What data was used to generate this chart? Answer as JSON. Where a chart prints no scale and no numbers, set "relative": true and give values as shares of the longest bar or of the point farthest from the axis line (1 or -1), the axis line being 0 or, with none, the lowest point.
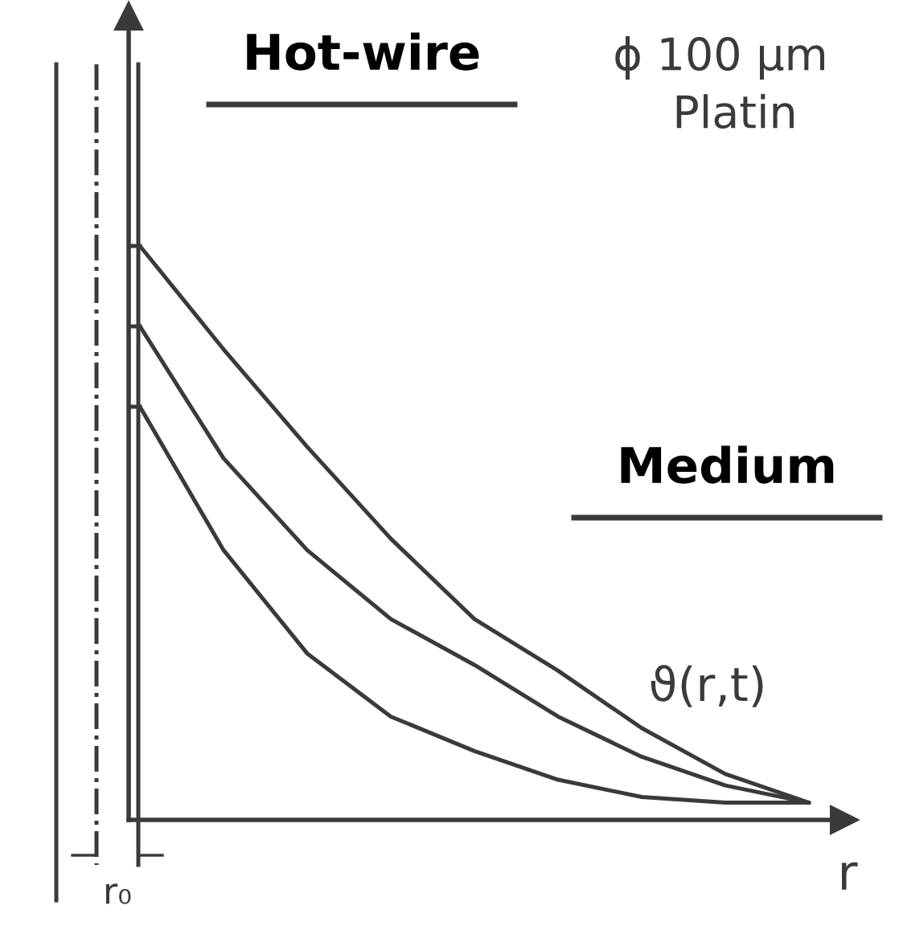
{
  "chart_data": {
    "type": "line",
    "relative": true,
    "categories": [
      null,
      null,
      null,
      null,
      null,
      null,
      null,
      null,
      null
    ],
    "series": [
      {
        "color": "#3a3a3a",
        "values": [
          1.0,
          0.82,
          0.65,
          0.49,
          0.35,
          0.26,
          0.16,
          0.08,
          0.03
        ]
      },
      {
        "color": "#3a3a3a",
        "values": [
          0.86,
          0.63,
          0.47,
          0.35,
          0.27,
          0.18,
          0.11,
          0.06,
          0.03
        ]
      },
      {
        "color": "#3a3a3a",
        "values": [
          0.72,
          0.47,
          0.29,
          0.18,
          0.12,
          0.07,
          0.04,
          0.03,
          0.03
        ]
      }
    ],
    "xlabel": "r",
    "line_style": "solid",
    "grid": false,
    "legend": false,
    "annotations": [
      "Hot-wire",
      "ϕ 100 µm",
      "Platin",
      "Medium",
      "ϑ(r,t)",
      "r₀"
    ]
  }
}
